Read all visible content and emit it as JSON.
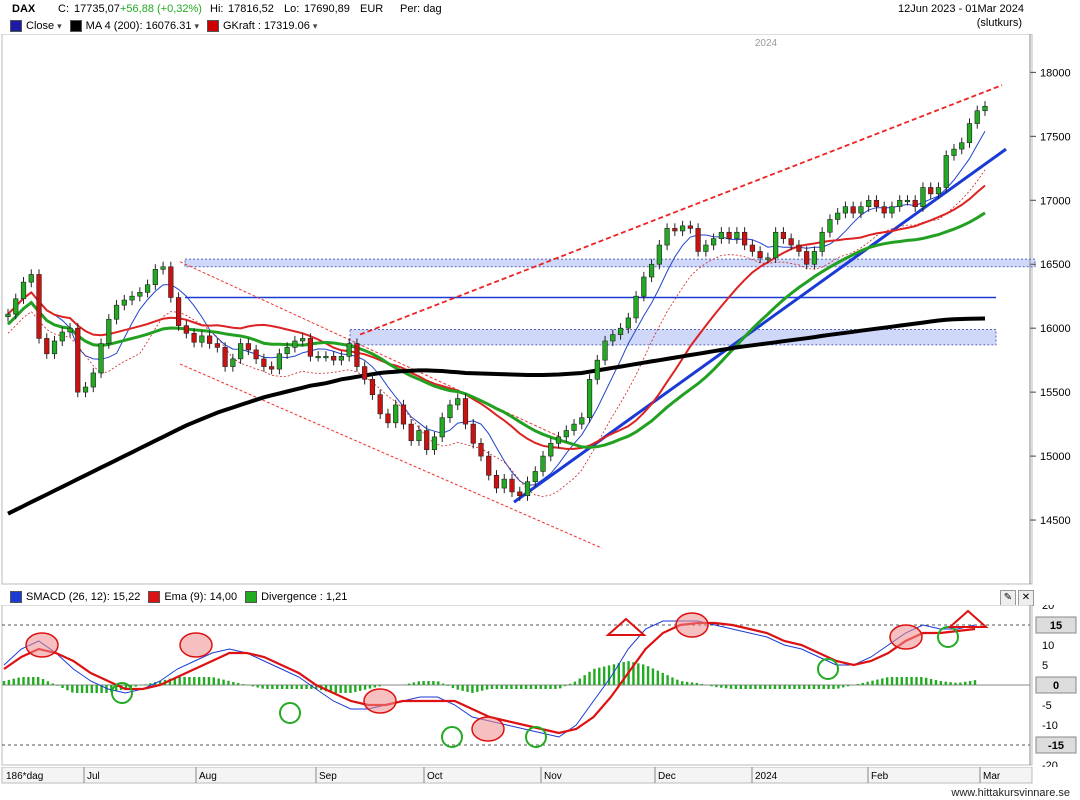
{
  "header": {
    "symbol": "DAX",
    "close_label": "C:",
    "close_value": "17735,07",
    "change": "+56,88 (+0,32%)",
    "hi_label": "Hi:",
    "hi_value": "17816,52",
    "lo_label": "Lo:",
    "lo_value": "17690,89",
    "currency": "EUR",
    "period": "Per: dag",
    "date_range": "12Jun 2023 - 01Mar 2024",
    "price_type": "(slutkurs)"
  },
  "legend": {
    "items": [
      {
        "label": "Close",
        "color": "#1a1aa6"
      },
      {
        "label": "MA 4 (200): 16076.31",
        "color": "#000000"
      },
      {
        "label": "GKraft : 17319.06",
        "color": "#cc0000"
      }
    ]
  },
  "indicator_legend": {
    "items": [
      {
        "label": "SMACD (26, 12): 15,22",
        "color": "#1a3ad6"
      },
      {
        "label": "Ema (9): 14,00",
        "color": "#dd1111"
      },
      {
        "label": "Divergence : 1,21",
        "color": "#22aa22"
      }
    ]
  },
  "year_label": "2024",
  "period_label": "186*dag",
  "footer": "www.hittakursvinnare.se",
  "colors": {
    "up": "#22aa22",
    "down": "#cc1111",
    "ma200": "#000000",
    "ma_green": "#22a022",
    "ma_red": "#dd2222",
    "blue_line": "#1a3ad6",
    "zone": "#cfd8f8"
  },
  "chart_data": [
    {
      "type": "candlestick",
      "title": "DAX",
      "x_labels": [
        "Jul",
        "Aug",
        "Sep",
        "Oct",
        "Nov",
        "Dec",
        "2024",
        "Feb",
        "Mar"
      ],
      "ylim": [
        14000,
        18300
      ],
      "y_ticks": [
        14500,
        15000,
        15500,
        16000,
        16500,
        17000,
        17500,
        18000
      ],
      "close": [
        16110,
        16230,
        16360,
        16420,
        15920,
        15800,
        15900,
        15970,
        16000,
        15500,
        15540,
        15650,
        15880,
        16070,
        16180,
        16220,
        16250,
        16280,
        16340,
        16460,
        16480,
        16240,
        16020,
        15960,
        15890,
        15940,
        15880,
        15850,
        15700,
        15760,
        15880,
        15830,
        15760,
        15700,
        15680,
        15800,
        15850,
        15900,
        15920,
        15780,
        15780,
        15780,
        15750,
        15780,
        15880,
        15700,
        15600,
        15480,
        15330,
        15260,
        15400,
        15250,
        15120,
        15200,
        15050,
        15150,
        15300,
        15400,
        15450,
        15250,
        15100,
        15000,
        14850,
        14750,
        14820,
        14720,
        14690,
        14800,
        14880,
        15000,
        15100,
        15150,
        15200,
        15250,
        15300,
        15600,
        15750,
        15900,
        15950,
        16000,
        16080,
        16250,
        16400,
        16500,
        16650,
        16780,
        16760,
        16800,
        16780,
        16600,
        16650,
        16700,
        16750,
        16700,
        16750,
        16650,
        16600,
        16550,
        16550,
        16750,
        16700,
        16650,
        16600,
        16500,
        16600,
        16750,
        16850,
        16900,
        16950,
        16900,
        16950,
        17000,
        16950,
        16900,
        16950,
        17000,
        17000,
        16950,
        17100,
        17050,
        17100,
        17350,
        17400,
        17450,
        17600,
        17700,
        17735
      ],
      "ma200": [
        14550,
        14580,
        14610,
        14640,
        14670,
        14700,
        14730,
        14760,
        14790,
        14820,
        14850,
        14880,
        14910,
        14940,
        14970,
        15000,
        15030,
        15060,
        15090,
        15120,
        15150,
        15180,
        15210,
        15240,
        15265,
        15290,
        15315,
        15340,
        15360,
        15380,
        15400,
        15420,
        15440,
        15460,
        15475,
        15490,
        15505,
        15520,
        15535,
        15550,
        15560,
        15570,
        15585,
        15600,
        15610,
        15620,
        15630,
        15640,
        15650,
        15655,
        15660,
        15665,
        15668,
        15670,
        15670,
        15668,
        15665,
        15660,
        15655,
        15650,
        15648,
        15646,
        15644,
        15642,
        15640,
        15638,
        15636,
        15634,
        15634,
        15634,
        15636,
        15638,
        15642,
        15646,
        15650,
        15660,
        15670,
        15680,
        15690,
        15700,
        15710,
        15720,
        15730,
        15740,
        15750,
        15760,
        15770,
        15780,
        15790,
        15800,
        15810,
        15820,
        15830,
        15840,
        15850,
        15858,
        15866,
        15874,
        15882,
        15890,
        15898,
        15906,
        15914,
        15922,
        15930,
        15940,
        15948,
        15956,
        15964,
        15972,
        15980,
        15988,
        15996,
        16004,
        16012,
        16020,
        16028,
        16036,
        16044,
        16052,
        16060,
        16066,
        16070,
        16072,
        16074,
        16075,
        16076
      ]
    },
    {
      "type": "line",
      "title": "SMACD",
      "ylim": [
        -20,
        20
      ],
      "y_ticks": [
        20,
        15,
        10,
        5,
        0,
        -5,
        -10,
        -15,
        -20
      ],
      "series": [
        {
          "name": "SMACD (26, 12)",
          "values": [
            5,
            9,
            11,
            8,
            4,
            1,
            -1,
            -2,
            -1,
            1,
            4,
            6,
            8,
            9,
            8,
            6,
            4,
            2,
            -1,
            -4,
            -6,
            -6,
            -5,
            -4,
            -3,
            -3,
            -5,
            -8,
            -9,
            -10,
            -11,
            -12,
            -13,
            -10,
            -4,
            2,
            9,
            14,
            16,
            16,
            16,
            15,
            14,
            13,
            12,
            10,
            9,
            7,
            5,
            5,
            7,
            10,
            13,
            15,
            14,
            14,
            15
          ]
        },
        {
          "name": "Ema (9)",
          "values": [
            4,
            7,
            9,
            8,
            6,
            3,
            1,
            -1,
            -1,
            0,
            2,
            4,
            6,
            8,
            8,
            7,
            5,
            3,
            0,
            -2,
            -4,
            -5,
            -5,
            -4,
            -4,
            -4,
            -4,
            -6,
            -8,
            -9,
            -10,
            -11,
            -12,
            -11,
            -8,
            -3,
            3,
            9,
            13,
            15,
            15.5,
            15.5,
            15,
            14,
            13,
            11,
            10,
            8,
            6,
            5,
            6,
            8,
            11,
            13,
            13,
            13.5,
            14
          ]
        },
        {
          "name": "Divergence",
          "values": [
            1,
            2,
            2,
            0,
            -2,
            -2,
            -2,
            -1,
            0,
            1,
            2,
            2,
            2,
            1,
            0,
            -1,
            -1,
            -1,
            -1,
            -2,
            -2,
            -1,
            0,
            0,
            1,
            1,
            -1,
            -2,
            -1,
            -1,
            -1,
            -1,
            -1,
            1,
            4,
            5,
            6,
            5,
            3,
            1,
            0.5,
            -0.5,
            -1,
            -1,
            -1,
            -1,
            -1,
            -1,
            -1,
            0,
            1,
            2,
            2,
            2,
            1,
            0.5,
            1.21
          ]
        }
      ]
    }
  ]
}
